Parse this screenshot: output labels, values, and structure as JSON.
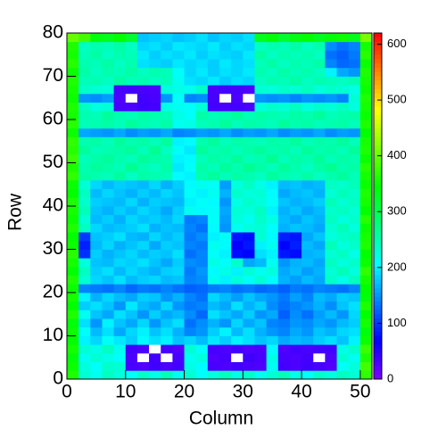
{
  "chart_data": {
    "type": "heatmap",
    "xlabel": "Column",
    "ylabel": "Row",
    "colormap": "rainbow",
    "zero_color": "#ffffff",
    "xlim": [
      0,
      52
    ],
    "xticks": [
      0,
      10,
      20,
      30,
      40,
      50
    ],
    "ylim": [
      0,
      80
    ],
    "yticks": [
      0,
      10,
      20,
      30,
      40,
      50,
      60,
      70,
      80
    ],
    "zlim": [
      0,
      620
    ],
    "zticks": [
      0,
      100,
      200,
      300,
      400,
      500,
      600
    ],
    "xbins": [
      0,
      2,
      4,
      6,
      8,
      10,
      12,
      14,
      16,
      18,
      20,
      22,
      24,
      26,
      28,
      30,
      32,
      34,
      36,
      38,
      40,
      42,
      44,
      46,
      48,
      50,
      52
    ],
    "ybins": [
      0,
      2,
      4,
      6,
      8,
      10,
      12,
      14,
      16,
      18,
      20,
      22,
      24,
      26,
      28,
      30,
      32,
      34,
      36,
      38,
      40,
      42,
      44,
      46,
      48,
      50,
      52,
      54,
      56,
      58,
      60,
      62,
      64,
      66,
      68,
      70,
      72,
      74,
      76,
      78,
      80
    ],
    "z": [
      [
        360,
        230,
        215,
        240,
        225,
        210,
        235,
        220,
        245,
        215,
        230,
        210,
        225,
        240,
        220,
        235,
        215,
        230,
        245,
        220,
        210,
        235,
        225,
        240,
        230,
        370
      ],
      [
        350,
        225,
        210,
        235,
        230,
        30,
        25,
        35,
        28,
        32,
        220,
        205,
        30,
        27,
        33,
        29,
        26,
        215,
        32,
        28,
        35,
        30,
        25,
        210,
        225,
        380
      ],
      [
        340,
        215,
        230,
        220,
        210,
        28,
        0,
        33,
        0,
        30,
        215,
        225,
        26,
        31,
        0,
        35,
        29,
        220,
        30,
        27,
        33,
        0,
        28,
        230,
        215,
        360
      ],
      [
        355,
        230,
        220,
        240,
        215,
        32,
        27,
        0,
        30,
        25,
        230,
        210,
        31,
        28,
        33,
        26,
        30,
        205,
        27,
        32,
        29,
        31,
        34,
        220,
        235,
        375
      ],
      [
        345,
        200,
        185,
        210,
        195,
        180,
        205,
        190,
        200,
        175,
        185,
        170,
        195,
        180,
        200,
        190,
        175,
        185,
        160,
        170,
        165,
        180,
        190,
        175,
        200,
        350
      ],
      [
        350,
        210,
        170,
        190,
        160,
        185,
        200,
        175,
        190,
        165,
        140,
        150,
        180,
        200,
        170,
        190,
        165,
        150,
        140,
        160,
        150,
        175,
        165,
        185,
        190,
        340
      ],
      [
        340,
        190,
        150,
        200,
        175,
        160,
        185,
        150,
        175,
        190,
        130,
        145,
        165,
        150,
        185,
        160,
        175,
        140,
        135,
        150,
        145,
        160,
        150,
        170,
        180,
        355
      ],
      [
        360,
        215,
        175,
        160,
        190,
        175,
        150,
        180,
        160,
        170,
        145,
        125,
        190,
        175,
        160,
        180,
        150,
        160,
        120,
        145,
        130,
        155,
        170,
        150,
        185,
        345
      ],
      [
        345,
        180,
        190,
        175,
        150,
        195,
        170,
        160,
        185,
        150,
        135,
        140,
        170,
        160,
        190,
        165,
        180,
        145,
        130,
        140,
        150,
        165,
        145,
        175,
        190,
        360
      ],
      [
        355,
        200,
        165,
        185,
        170,
        160,
        180,
        175,
        150,
        165,
        140,
        130,
        185,
        170,
        155,
        175,
        160,
        150,
        135,
        155,
        140,
        170,
        160,
        180,
        175,
        340
      ],
      [
        350,
        140,
        135,
        130,
        140,
        125,
        135,
        130,
        140,
        130,
        120,
        125,
        135,
        140,
        130,
        135,
        125,
        130,
        120,
        135,
        130,
        140,
        135,
        130,
        140,
        345
      ],
      [
        360,
        230,
        185,
        175,
        190,
        170,
        180,
        185,
        170,
        175,
        140,
        145,
        215,
        200,
        225,
        210,
        230,
        205,
        165,
        155,
        170,
        160,
        235,
        220,
        240,
        355
      ],
      [
        345,
        240,
        180,
        190,
        170,
        185,
        175,
        165,
        180,
        185,
        135,
        150,
        205,
        220,
        200,
        230,
        215,
        225,
        160,
        170,
        155,
        165,
        230,
        245,
        225,
        370
      ],
      [
        355,
        225,
        175,
        170,
        185,
        180,
        190,
        175,
        160,
        180,
        145,
        140,
        220,
        210,
        235,
        160,
        170,
        215,
        150,
        165,
        170,
        160,
        240,
        225,
        235,
        350
      ],
      [
        365,
        95,
        180,
        165,
        175,
        185,
        170,
        180,
        175,
        190,
        130,
        140,
        210,
        200,
        75,
        70,
        190,
        200,
        80,
        75,
        165,
        170,
        230,
        240,
        220,
        345
      ],
      [
        350,
        85,
        170,
        185,
        165,
        175,
        185,
        160,
        180,
        175,
        140,
        135,
        215,
        205,
        65,
        80,
        200,
        215,
        70,
        85,
        170,
        160,
        245,
        225,
        235,
        360
      ],
      [
        345,
        100,
        175,
        180,
        190,
        170,
        165,
        185,
        170,
        180,
        135,
        145,
        200,
        210,
        80,
        75,
        230,
        205,
        85,
        80,
        160,
        175,
        225,
        235,
        240,
        355
      ],
      [
        360,
        240,
        185,
        170,
        175,
        180,
        190,
        165,
        175,
        170,
        140,
        130,
        205,
        150,
        215,
        225,
        230,
        210,
        165,
        175,
        170,
        160,
        230,
        245,
        225,
        350
      ],
      [
        350,
        230,
        170,
        180,
        165,
        185,
        175,
        180,
        170,
        185,
        135,
        140,
        210,
        155,
        225,
        215,
        235,
        220,
        170,
        160,
        175,
        165,
        240,
        225,
        235,
        365
      ],
      [
        355,
        245,
        175,
        165,
        180,
        170,
        185,
        175,
        160,
        180,
        215,
        205,
        210,
        160,
        230,
        225,
        240,
        200,
        165,
        175,
        160,
        170,
        235,
        240,
        230,
        345
      ],
      [
        360,
        235,
        180,
        175,
        170,
        185,
        165,
        180,
        175,
        170,
        200,
        210,
        205,
        150,
        220,
        235,
        225,
        210,
        175,
        165,
        170,
        180,
        245,
        230,
        240,
        355
      ],
      [
        345,
        240,
        170,
        185,
        175,
        165,
        180,
        170,
        185,
        175,
        210,
        200,
        215,
        165,
        235,
        225,
        230,
        205,
        160,
        170,
        175,
        165,
        230,
        245,
        235,
        360
      ],
      [
        350,
        230,
        185,
        170,
        180,
        175,
        170,
        185,
        165,
        180,
        205,
        215,
        210,
        155,
        225,
        240,
        220,
        200,
        170,
        175,
        165,
        170,
        240,
        235,
        245,
        350
      ],
      [
        370,
        255,
        250,
        245,
        260,
        240,
        255,
        250,
        245,
        205,
        200,
        250,
        260,
        245,
        255,
        250,
        240,
        260,
        250,
        245,
        255,
        240,
        250,
        260,
        245,
        355
      ],
      [
        360,
        250,
        260,
        255,
        245,
        265,
        250,
        240,
        255,
        195,
        210,
        255,
        245,
        260,
        250,
        265,
        255,
        245,
        260,
        250,
        240,
        255,
        265,
        250,
        255,
        365
      ],
      [
        375,
        245,
        255,
        260,
        250,
        245,
        260,
        255,
        250,
        200,
        205,
        245,
        255,
        250,
        260,
        245,
        250,
        265,
        245,
        255,
        250,
        260,
        245,
        255,
        250,
        350
      ],
      [
        365,
        260,
        245,
        250,
        255,
        260,
        245,
        265,
        240,
        210,
        195,
        260,
        250,
        255,
        245,
        255,
        260,
        250,
        255,
        245,
        260,
        250,
        255,
        245,
        260,
        360
      ],
      [
        370,
        250,
        255,
        245,
        260,
        250,
        255,
        245,
        260,
        200,
        205,
        250,
        260,
        245,
        255,
        250,
        245,
        255,
        250,
        260,
        245,
        255,
        250,
        260,
        245,
        355
      ],
      [
        350,
        160,
        155,
        150,
        160,
        145,
        155,
        150,
        160,
        140,
        145,
        155,
        150,
        160,
        145,
        155,
        150,
        160,
        145,
        155,
        150,
        160,
        145,
        155,
        150,
        345
      ],
      [
        365,
        245,
        250,
        255,
        245,
        260,
        250,
        245,
        255,
        215,
        220,
        245,
        250,
        260,
        245,
        255,
        250,
        245,
        260,
        250,
        255,
        245,
        250,
        255,
        245,
        360
      ],
      [
        355,
        250,
        245,
        260,
        250,
        245,
        255,
        250,
        245,
        220,
        210,
        255,
        245,
        250,
        260,
        245,
        255,
        250,
        245,
        255,
        250,
        260,
        245,
        250,
        255,
        350
      ],
      [
        360,
        240,
        225,
        230,
        30,
        28,
        35,
        32,
        220,
        215,
        210,
        230,
        32,
        29,
        34,
        30,
        225,
        235,
        230,
        240,
        225,
        235,
        230,
        240,
        225,
        355
      ],
      [
        350,
        150,
        145,
        155,
        27,
        0,
        33,
        29,
        150,
        210,
        140,
        145,
        30,
        0,
        28,
        0,
        150,
        145,
        150,
        140,
        150,
        145,
        150,
        140,
        230,
        360
      ],
      [
        355,
        235,
        230,
        225,
        31,
        34,
        30,
        28,
        225,
        220,
        215,
        235,
        29,
        33,
        31,
        27,
        230,
        225,
        235,
        230,
        240,
        225,
        235,
        230,
        220,
        350
      ],
      [
        360,
        245,
        250,
        240,
        255,
        245,
        250,
        240,
        245,
        215,
        190,
        185,
        195,
        180,
        190,
        185,
        240,
        250,
        245,
        255,
        240,
        250,
        245,
        240,
        250,
        355
      ],
      [
        350,
        255,
        240,
        250,
        245,
        255,
        240,
        250,
        245,
        210,
        185,
        195,
        180,
        190,
        185,
        195,
        250,
        240,
        255,
        245,
        250,
        240,
        200,
        160,
        150,
        360
      ],
      [
        365,
        250,
        245,
        255,
        240,
        250,
        190,
        185,
        180,
        195,
        185,
        190,
        180,
        195,
        185,
        190,
        245,
        255,
        240,
        250,
        245,
        255,
        140,
        125,
        130,
        350
      ],
      [
        355,
        245,
        255,
        240,
        250,
        245,
        195,
        180,
        190,
        185,
        195,
        180,
        190,
        185,
        180,
        195,
        255,
        240,
        250,
        245,
        250,
        240,
        130,
        120,
        135,
        365
      ],
      [
        360,
        240,
        250,
        245,
        255,
        240,
        185,
        190,
        180,
        195,
        190,
        185,
        195,
        180,
        190,
        185,
        240,
        250,
        245,
        255,
        240,
        250,
        145,
        130,
        140,
        355
      ],
      [
        400,
        380,
        340,
        330,
        345,
        320,
        175,
        180,
        185,
        175,
        180,
        190,
        175,
        185,
        180,
        190,
        330,
        340,
        320,
        335,
        345,
        330,
        340,
        350,
        330,
        410
      ]
    ]
  }
}
